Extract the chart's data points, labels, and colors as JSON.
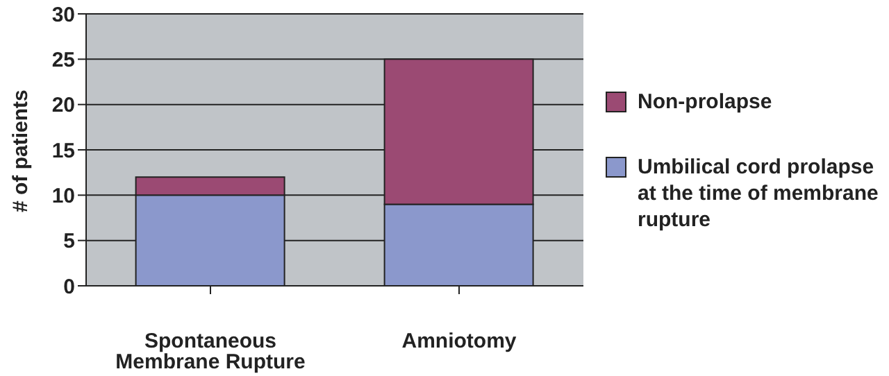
{
  "chart_data": {
    "type": "bar",
    "ylabel": "# of patients",
    "categories": [
      "Spontaneous Membrane Rupture",
      "Amniotomy"
    ],
    "series": [
      {
        "name": "Umbilical cord prolapse at the time of membrane rupture",
        "color": "#8b98cc",
        "values": [
          10,
          9
        ]
      },
      {
        "name": "Non-prolapse",
        "color": "#9b4a73",
        "values": [
          2,
          16
        ]
      }
    ],
    "stacked": true,
    "ylim": [
      0,
      30
    ],
    "yticks": [
      0,
      5,
      10,
      15,
      20,
      25,
      30
    ],
    "grid": "y",
    "legend": "right"
  }
}
